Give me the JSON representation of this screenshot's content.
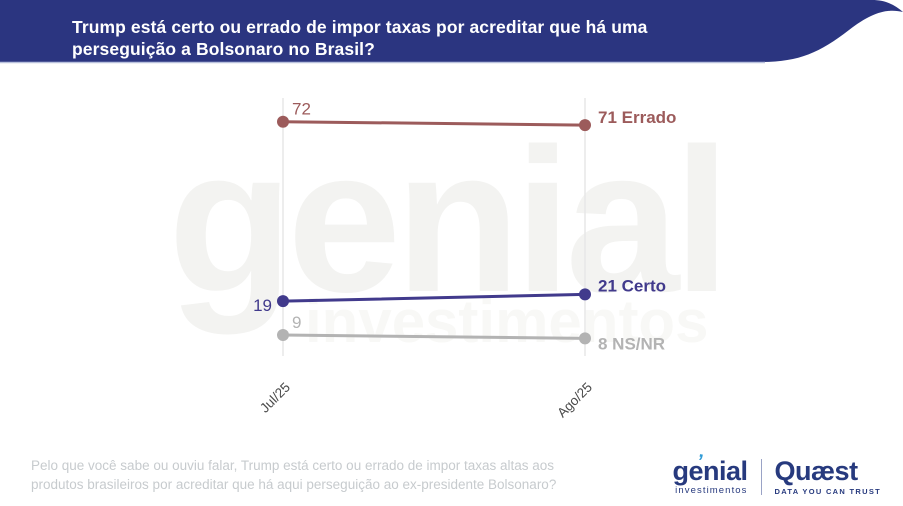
{
  "header": {
    "title": "Trump está certo ou errado de impor taxas por acreditar que há uma perseguição a Bolsonaro no Brasil?",
    "bg_color": "#2b3580",
    "text_color": "#ffffff"
  },
  "chart_data": {
    "type": "line",
    "subtype": "slope-chart",
    "title": "",
    "categories": [
      "Jul/25",
      "Ago/25"
    ],
    "series": [
      {
        "name": "Errado",
        "values": [
          72,
          71
        ],
        "color": "#9c5b5b"
      },
      {
        "name": "Certo",
        "values": [
          19,
          21
        ],
        "color": "#413a8c"
      },
      {
        "name": "NS/NR",
        "values": [
          9,
          8
        ],
        "color": "#b3b3b3"
      }
    ],
    "value_labels": "shown at every point; right-side labels include series name",
    "grid": "vertical line per category",
    "legend": "inline labels right of last point",
    "ylim": [
      0,
      80
    ],
    "axis_label_color": "#4a4a4a",
    "gridline_color": "#e7e7e7"
  },
  "watermark": {
    "line1": "genial",
    "line2": "investimentos"
  },
  "footnote": "Pelo que você sabe ou ouviu falar, Trump está certo ou errado de impor taxas altas aos produtos brasileiros por acreditar que há aqui perseguição ao ex-presidente Bolsonaro?",
  "branding": {
    "genial": {
      "name": "genial",
      "tagline": "investimentos"
    },
    "quaest": {
      "name": "Quæst",
      "tagline": "DATA YOU CAN TRUST"
    }
  }
}
